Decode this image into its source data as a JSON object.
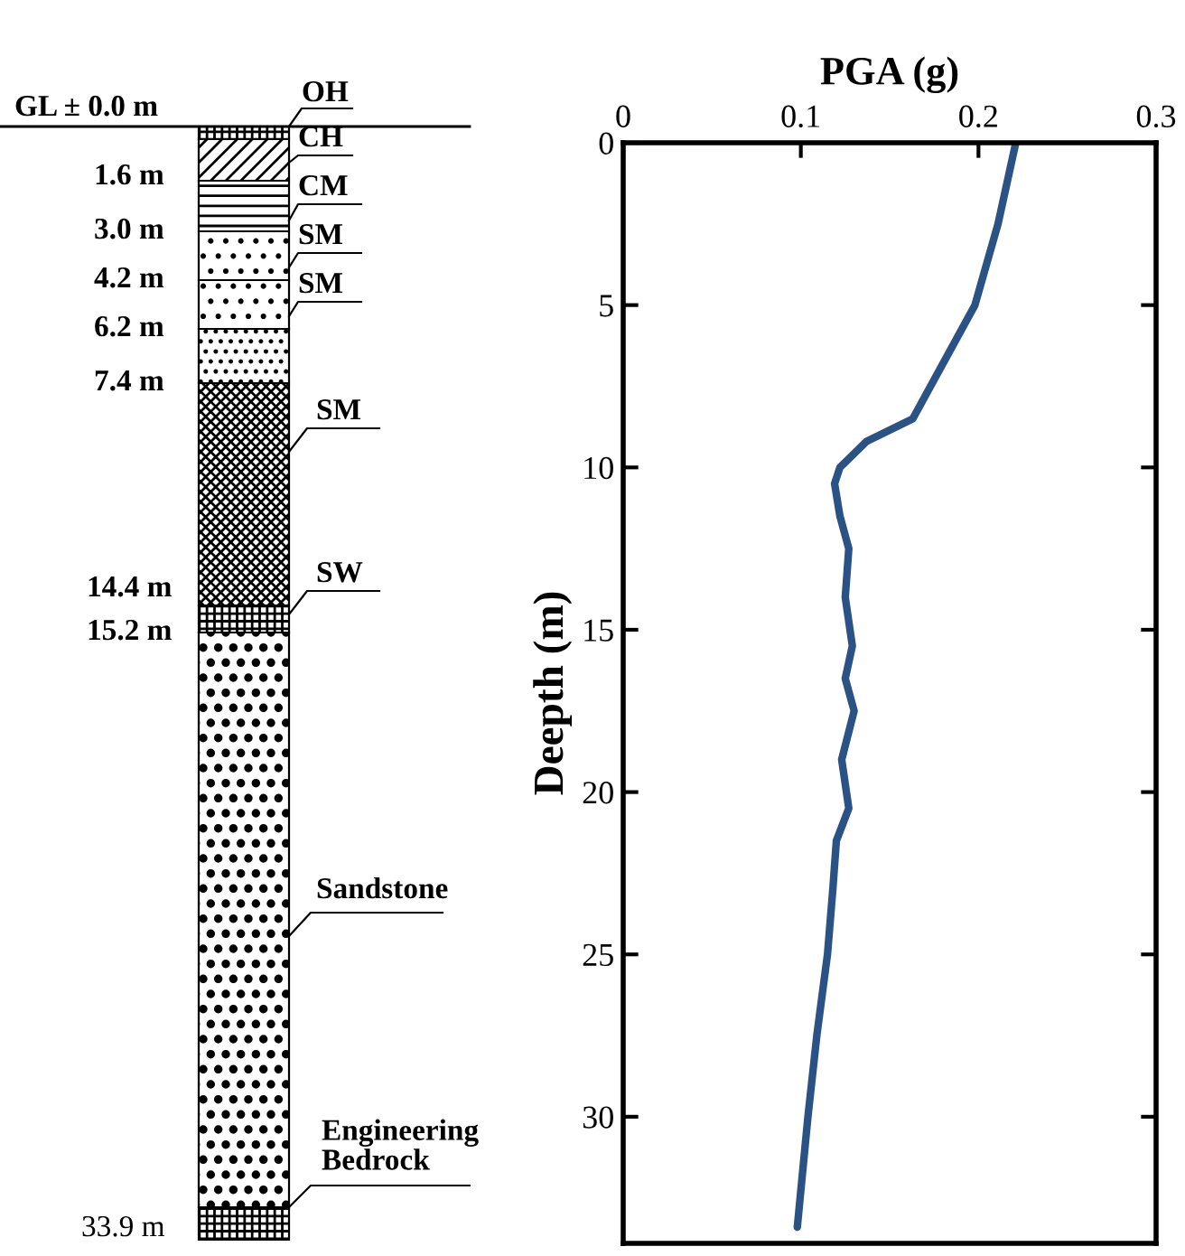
{
  "chart_data": {
    "type": "line",
    "xlabel": "PGA (g)",
    "ylabel": "Deepth (m)",
    "xlim": [
      0,
      0.3
    ],
    "xticks": [
      0,
      0.1,
      0.2,
      0.3
    ],
    "ylim": [
      33.9,
      0
    ],
    "yticks": [
      0,
      5,
      10,
      15,
      20,
      25,
      30
    ],
    "grid": false,
    "marker": "none",
    "line_style": "solid",
    "series": [
      {
        "color": "#2b5285",
        "x": [
          0.221,
          0.211,
          0.198,
          0.173,
          0.168,
          0.163,
          0.137,
          0.122,
          0.119,
          0.122,
          0.127,
          0.125,
          0.129,
          0.125,
          0.13,
          0.123,
          0.127,
          0.12,
          0.118,
          0.115,
          0.109,
          0.104,
          0.098
        ],
        "values": [
          0,
          2.5,
          5,
          7.5,
          8,
          8.5,
          9.2,
          10,
          10.5,
          11.5,
          12.5,
          14,
          15.5,
          16.5,
          17.5,
          19,
          20.5,
          21.5,
          23,
          25,
          27.5,
          30,
          33.4
        ]
      }
    ],
    "annotations": [
      "GL ± 0.0 m",
      "1.6 m",
      "3.0 m",
      "4.2 m",
      "6.2 m",
      "7.4 m",
      "14.4 m",
      "15.2 m",
      "33.9 m",
      "OH",
      "CH",
      "CM",
      "SM",
      "SM",
      "SM",
      "SW",
      "Sandstone",
      "Engineering\nBedrock"
    ]
  }
}
